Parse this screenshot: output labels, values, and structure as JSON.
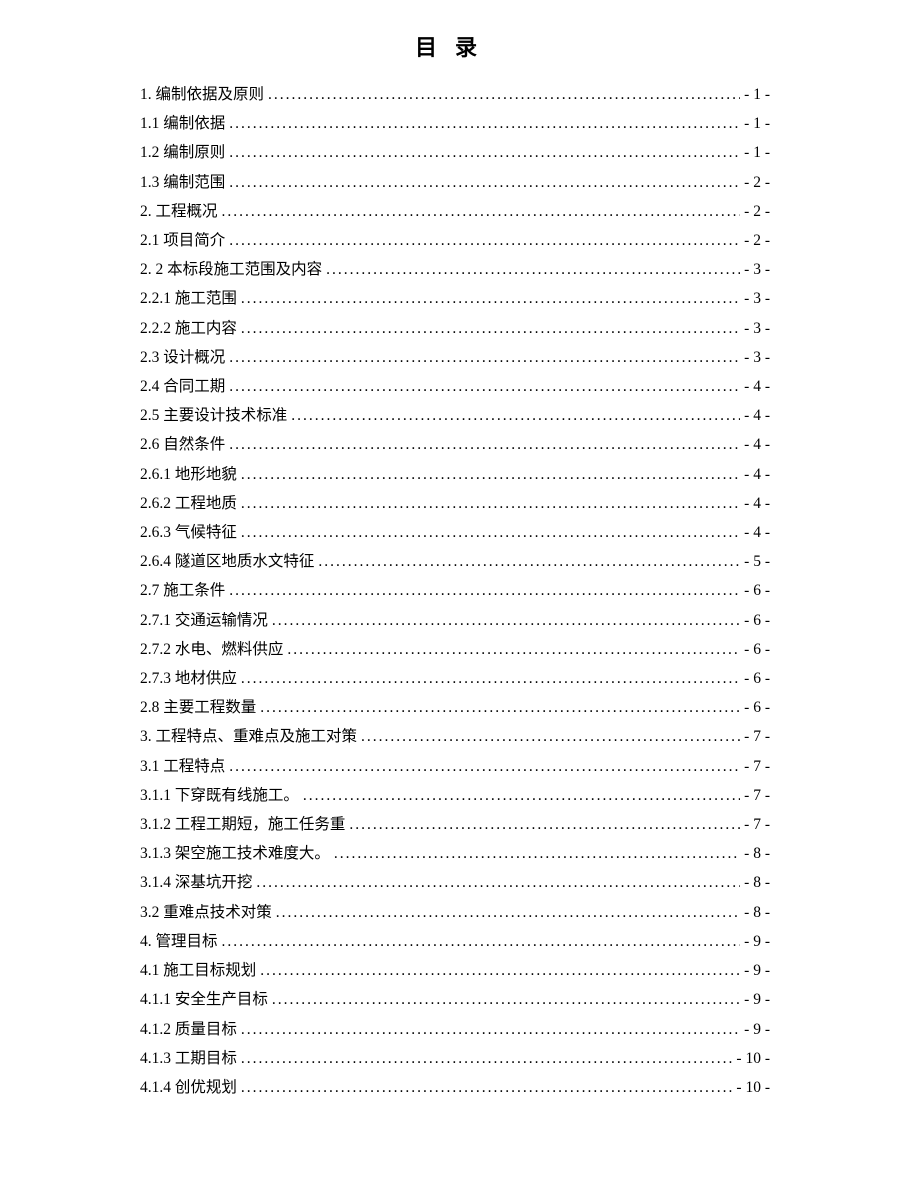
{
  "document": {
    "title": "目录",
    "text_color": "#000000",
    "background_color": "#ffffff",
    "title_fontsize": 22,
    "body_fontsize": 15.5,
    "line_height": 29.2,
    "entries": [
      {
        "label": "1. 编制依据及原则 ",
        "page": "- 1 -"
      },
      {
        "label": "1.1 编制依据",
        "page": "- 1 -"
      },
      {
        "label": "1.2 编制原则",
        "page": "- 1 -"
      },
      {
        "label": "1.3 编制范围",
        "page": "- 2 -"
      },
      {
        "label": "2. 工程概况 ",
        "page": "- 2 -"
      },
      {
        "label": "2.1 项目简介",
        "page": "- 2 -"
      },
      {
        "label": "2.  2 本标段施工范围及内容",
        "page": "- 3 -"
      },
      {
        "label": "2.2.1 施工范围",
        "page": "- 3 -"
      },
      {
        "label": "2.2.2  施工内容 ",
        "page": "- 3 -"
      },
      {
        "label": "2.3 设计概况",
        "page": "- 3 -"
      },
      {
        "label": "2.4 合同工期",
        "page": "- 4 -"
      },
      {
        "label": "2.5 主要设计技术标准",
        "page": "- 4 -"
      },
      {
        "label": "2.6 自然条件",
        "page": "- 4 -"
      },
      {
        "label": "2.6.1 地形地貌",
        "page": "- 4 -"
      },
      {
        "label": "2.6.2 工程地质",
        "page": "- 4 -"
      },
      {
        "label": "2.6.3 气候特征",
        "page": "- 4 -"
      },
      {
        "label": "2.6.4 隧道区地质水文特征",
        "page": "- 5 -"
      },
      {
        "label": "2.7 施工条件",
        "page": "- 6 -"
      },
      {
        "label": "2.7.1 交通运输情况",
        "page": "- 6 -"
      },
      {
        "label": "2.7.2 水电、燃料供应",
        "page": "- 6 -"
      },
      {
        "label": "2.7.3 地材供应",
        "page": "- 6 -"
      },
      {
        "label": "2.8 主要工程数量",
        "page": "- 6 -"
      },
      {
        "label": "3. 工程特点、重难点及施工对策 ",
        "page": "- 7 -"
      },
      {
        "label": "3.1 工程特点",
        "page": "- 7 -"
      },
      {
        "label": "3.1.1 下穿既有线施工。",
        "page": "- 7 -"
      },
      {
        "label": "3.1.2 工程工期短，施工任务重",
        "page": "- 7 -"
      },
      {
        "label": "3.1.3 架空施工技术难度大。",
        "page": "- 8 -"
      },
      {
        "label": "3.1.4 深基坑开挖",
        "page": "- 8 -"
      },
      {
        "label": "3.2 重难点技术对策",
        "page": "- 8 -"
      },
      {
        "label": "4. 管理目标 ",
        "page": "- 9 -"
      },
      {
        "label": "4.1 施工目标规划",
        "page": "- 9 -"
      },
      {
        "label": "4.1.1 安全生产目标",
        "page": "- 9 -"
      },
      {
        "label": "4.1.2 质量目标",
        "page": "- 9 -"
      },
      {
        "label": "4.1.3 工期目标",
        "page": "- 10 -"
      },
      {
        "label": "4.1.4 创优规划",
        "page": "- 10 -"
      }
    ]
  }
}
